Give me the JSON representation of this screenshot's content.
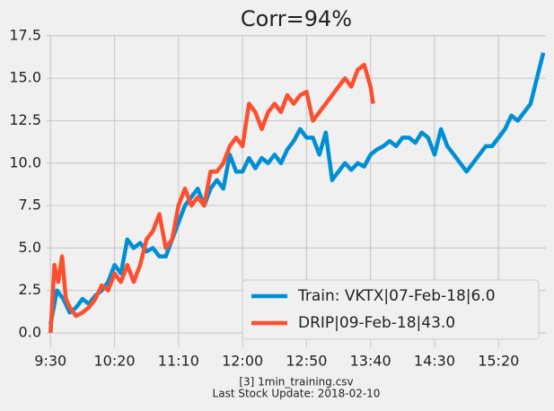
{
  "chart_data": {
    "type": "line",
    "title": "Corr=94%",
    "footer": [
      "[3] 1min_training.csv",
      "Last Stock Update: 2018-02-10"
    ],
    "xlim": [
      "9:27",
      "15:57"
    ],
    "xticks": [
      "9:30",
      "10:20",
      "11:10",
      "12:00",
      "12:50",
      "13:40",
      "14:30",
      "15:20"
    ],
    "ylim": [
      -0.9,
      17.6
    ],
    "yticks": [
      {
        "value": 0,
        "label": "0.0"
      },
      2.5,
      {
        "value": 5,
        "label": "5.0"
      },
      7.5,
      {
        "value": 10,
        "label": "10.0"
      },
      12.5,
      {
        "value": 15,
        "label": "15.0"
      },
      17.5
    ],
    "grid": true,
    "legend": "lower right",
    "series": [
      {
        "name": "Train: VKTX|07-Feb-18|6.0",
        "color": "#008fd5",
        "x": [
          "9:30",
          "9:35",
          "9:40",
          "9:45",
          "9:50",
          "9:55",
          "10:00",
          "10:05",
          "10:10",
          "10:15",
          "10:20",
          "10:25",
          "10:30",
          "10:35",
          "10:40",
          "10:45",
          "10:50",
          "10:55",
          "11:00",
          "11:05",
          "11:10",
          "11:15",
          "11:20",
          "11:25",
          "11:30",
          "11:35",
          "11:40",
          "11:45",
          "11:50",
          "11:55",
          "12:00",
          "12:05",
          "12:10",
          "12:15",
          "12:20",
          "12:25",
          "12:30",
          "12:35",
          "12:40",
          "12:45",
          "12:50",
          "12:55",
          "13:00",
          "13:05",
          "13:10",
          "13:15",
          "13:20",
          "13:25",
          "13:30",
          "13:35",
          "13:40",
          "13:45",
          "13:50",
          "13:55",
          "14:00",
          "14:05",
          "14:10",
          "14:15",
          "14:20",
          "14:25",
          "14:30",
          "14:35",
          "14:40",
          "14:45",
          "14:50",
          "14:55",
          "15:00",
          "15:05",
          "15:10",
          "15:15",
          "15:20",
          "15:25",
          "15:30",
          "15:35",
          "15:40",
          "15:45",
          "15:50",
          "15:55"
        ],
        "values": [
          0.5,
          2.5,
          2.0,
          1.2,
          1.5,
          2.0,
          1.7,
          2.2,
          2.5,
          3.0,
          4.0,
          3.5,
          5.5,
          5.0,
          5.3,
          4.8,
          5.0,
          4.5,
          4.5,
          5.5,
          6.5,
          7.5,
          8.0,
          8.5,
          7.5,
          8.5,
          9.0,
          8.5,
          10.5,
          9.5,
          9.5,
          10.3,
          9.7,
          10.3,
          10.0,
          10.5,
          10.0,
          10.8,
          11.3,
          12.0,
          11.5,
          11.5,
          10.5,
          11.8,
          9.0,
          9.5,
          10.0,
          9.6,
          10.0,
          9.8,
          10.5,
          10.8,
          11.0,
          11.3,
          11.0,
          11.5,
          11.5,
          11.2,
          11.8,
          11.5,
          10.5,
          12.0,
          11.0,
          10.5,
          10.0,
          9.5,
          10.0,
          10.5,
          11.0,
          11.0,
          11.5,
          12.0,
          12.8,
          12.5,
          13.0,
          13.5,
          15.0,
          16.5
        ]
      },
      {
        "name": "DRIP|09-Feb-18|43.0",
        "color": "#fc4f30",
        "x": [
          "9:30",
          "9:33",
          "9:36",
          "9:39",
          "9:42",
          "9:45",
          "9:50",
          "9:55",
          "10:00",
          "10:05",
          "10:10",
          "10:15",
          "10:20",
          "10:25",
          "10:30",
          "10:35",
          "10:40",
          "10:45",
          "10:50",
          "10:55",
          "11:00",
          "11:05",
          "11:10",
          "11:15",
          "11:20",
          "11:25",
          "11:30",
          "11:35",
          "11:40",
          "11:45",
          "11:50",
          "11:55",
          "12:00",
          "12:05",
          "12:10",
          "12:15",
          "12:20",
          "12:25",
          "12:30",
          "12:35",
          "12:40",
          "12:45",
          "12:50",
          "12:55",
          "13:00",
          "13:05",
          "13:10",
          "13:15",
          "13:20",
          "13:25",
          "13:30",
          "13:35",
          "13:40",
          "13:42"
        ],
        "values": [
          0.0,
          4.0,
          3.0,
          4.5,
          2.0,
          1.5,
          1.0,
          1.2,
          1.5,
          2.0,
          2.8,
          2.5,
          3.5,
          3.0,
          4.0,
          3.0,
          4.0,
          5.5,
          6.0,
          7.0,
          5.0,
          5.5,
          7.5,
          8.5,
          7.5,
          8.0,
          7.5,
          9.5,
          9.5,
          10.0,
          11.0,
          11.5,
          11.0,
          13.5,
          13.0,
          12.0,
          13.0,
          13.5,
          13.0,
          14.0,
          13.5,
          14.0,
          14.2,
          12.5,
          13.0,
          13.5,
          14.0,
          14.5,
          15.0,
          14.5,
          15.5,
          15.8,
          14.5,
          13.5
        ]
      }
    ]
  }
}
